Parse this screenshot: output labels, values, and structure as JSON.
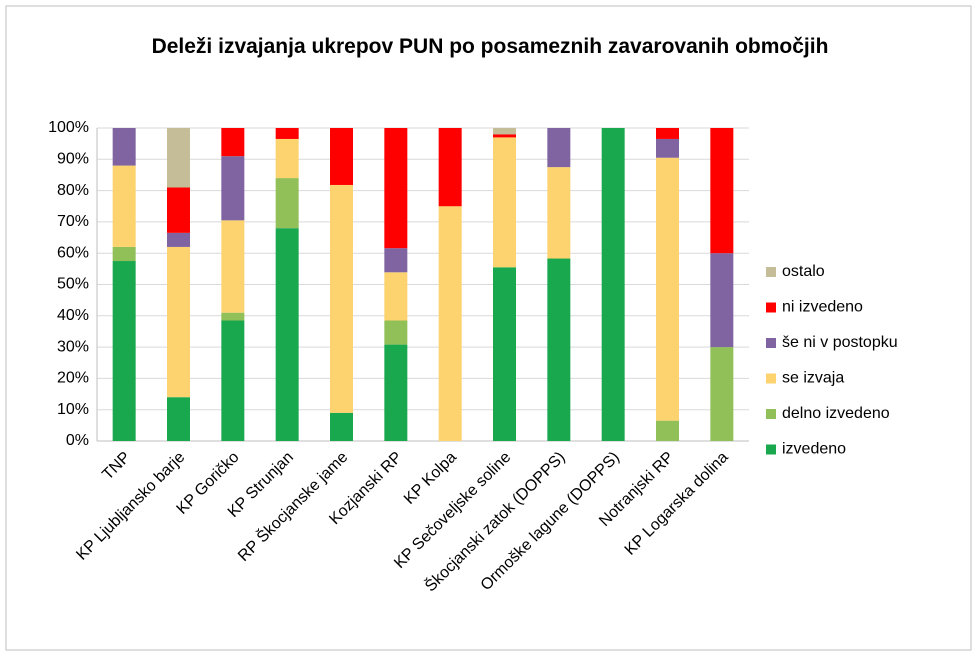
{
  "chart_data": {
    "type": "stacked_bar",
    "title": "Deleži izvajanja ukrepov PUN po posameznih zavarovanih območjih",
    "categories": [
      "TNP",
      "KP Ljubljansko barje",
      "KP Goričko",
      "KP Strunjan",
      "RP Škocjanske jame",
      "Kozjanski RP",
      "KP Kolpa",
      "KP Sečoveljske soline",
      "Škocjanski zatok (DOPPS)",
      "Ormoške lagune (DOPPS)",
      "Notranjski RP",
      "KP Logarska dolina"
    ],
    "series": [
      {
        "name": "izvedeno",
        "color": "#1aa84f",
        "values": [
          57.5,
          14,
          38.5,
          68,
          9,
          30.8,
          0,
          55.5,
          58.3,
          100,
          0,
          0
        ]
      },
      {
        "name": "delno izvedeno",
        "color": "#92c058",
        "values": [
          4.5,
          0,
          2.5,
          16,
          0,
          7.7,
          0,
          0,
          0,
          0,
          6.5,
          30
        ]
      },
      {
        "name": "se izvaja",
        "color": "#fcd36e",
        "values": [
          26,
          48,
          29.5,
          12.5,
          72.8,
          15.4,
          75,
          41.5,
          29.2,
          0,
          84,
          0
        ]
      },
      {
        "name": "še ni v postopku",
        "color": "#8064a2",
        "values": [
          12,
          4.5,
          20.5,
          0,
          0,
          7.7,
          0,
          0,
          12.5,
          0,
          6,
          30
        ]
      },
      {
        "name": "ni izvedeno",
        "color": "#ff0000",
        "values": [
          0,
          14.5,
          9,
          3.5,
          18.2,
          38.4,
          25,
          1,
          0,
          0,
          3.5,
          40
        ]
      },
      {
        "name": "ostalo",
        "color": "#c4bd97",
        "values": [
          0,
          19,
          0,
          0,
          0,
          0,
          0,
          2,
          0,
          0,
          0,
          0
        ]
      }
    ],
    "ylim": [
      0,
      100
    ],
    "yticks": [
      {
        "value": 0,
        "label": "0%"
      },
      {
        "value": 10,
        "label": "10%"
      },
      {
        "value": 20,
        "label": "20%"
      },
      {
        "value": 30,
        "label": "30%"
      },
      {
        "value": 40,
        "label": "40%"
      },
      {
        "value": 50,
        "label": "50%"
      },
      {
        "value": 60,
        "label": "60%"
      },
      {
        "value": 70,
        "label": "70%"
      },
      {
        "value": 80,
        "label": "80%"
      },
      {
        "value": 90,
        "label": "90%"
      },
      {
        "value": 100,
        "label": "100%"
      }
    ],
    "grid": true,
    "legend": "right"
  }
}
